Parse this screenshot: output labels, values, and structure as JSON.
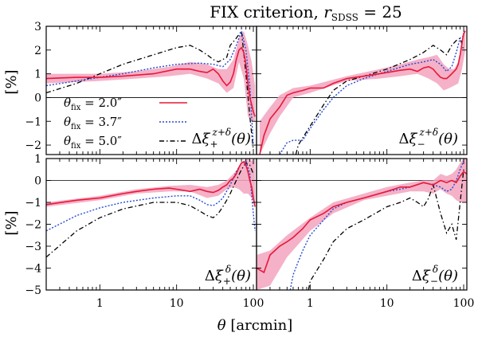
{
  "figure": {
    "title": "FIX criterion, r_SDSS = 25",
    "title_parts": {
      "main": "FIX criterion, ",
      "var": "r",
      "sub": "SDSS",
      "rest": " = 25"
    },
    "xlabel_parts": {
      "sym": "θ",
      "rest": " [arcmin]"
    },
    "ylabel": "[%]"
  },
  "chart_data": {
    "type": "line",
    "x_scale": "log",
    "x_ticks": [
      1,
      10,
      100
    ],
    "x_tick_labels": [
      "1",
      "10",
      "100"
    ],
    "legend": {
      "placement": "bottom-left of top-left panel",
      "entries": [
        {
          "label": "θ_fix = 2.0″",
          "sym": "θ",
          "sub": "fix",
          "rest": " = 2.0″",
          "color": "#e8173a",
          "style": "solid"
        },
        {
          "label": "θ_fix = 3.7″",
          "sym": "θ",
          "sub": "fix",
          "rest": " = 3.7″",
          "color": "#2449d8",
          "style": "dotted"
        },
        {
          "label": "θ_fix = 5.0″",
          "sym": "θ",
          "sub": "fix",
          "rest": " = 5.0″",
          "color": "#000000",
          "style": "dash-dot"
        }
      ]
    },
    "panels": [
      {
        "id": "top-left",
        "label": "Δξ+^(z+δ)(θ)",
        "label_parts": {
          "delta": "Δ",
          "xi": "ξ",
          "sub": "+",
          "sup": "z+δ",
          "arg": "(θ)"
        },
        "xlim": [
          0.2,
          110
        ],
        "ylim": [
          -2.4,
          3
        ],
        "y_ticks": [
          -2,
          -1,
          0,
          1,
          2,
          3
        ],
        "band": {
          "x": [
            0.2,
            1,
            3,
            8,
            15,
            25,
            35,
            45,
            55,
            65,
            75,
            85,
            95,
            105
          ],
          "lo": [
            0.6,
            0.7,
            0.8,
            0.9,
            1.0,
            0.8,
            0.6,
            0.2,
            0.4,
            1.5,
            0.8,
            -0.8,
            -1.0,
            -1.0
          ],
          "hi": [
            1.0,
            1.0,
            1.1,
            1.3,
            1.5,
            1.4,
            1.2,
            1.2,
            1.6,
            2.5,
            2.8,
            2.2,
            1.5,
            0.5
          ]
        },
        "series": [
          {
            "name": "θ_fix = 2.0″",
            "x": [
              0.2,
              0.5,
              1,
              2,
              5,
              10,
              15,
              20,
              25,
              30,
              35,
              40,
              45,
              50,
              55,
              60,
              65,
              70,
              75,
              80,
              85,
              90,
              95,
              100,
              105
            ],
            "y": [
              0.8,
              0.85,
              0.85,
              0.9,
              1.0,
              1.2,
              1.2,
              1.1,
              1.05,
              1.2,
              1.0,
              0.7,
              0.5,
              0.65,
              1.0,
              1.6,
              2.0,
              2.1,
              1.9,
              1.4,
              0.6,
              0.0,
              -0.3,
              -0.6,
              -0.8
            ]
          },
          {
            "name": "θ_fix = 3.7″",
            "x": [
              0.2,
              0.5,
              1,
              2,
              5,
              10,
              20,
              30,
              40,
              50,
              60,
              70,
              80,
              90,
              100
            ],
            "y": [
              0.5,
              0.7,
              0.85,
              1.0,
              1.25,
              1.4,
              1.45,
              1.4,
              1.3,
              1.6,
              2.2,
              2.8,
              2.0,
              0.5,
              -2.0
            ]
          },
          {
            "name": "θ_fix = 5.0″",
            "x": [
              0.2,
              0.5,
              1,
              2,
              5,
              10,
              15,
              20,
              25,
              30,
              35,
              40,
              45,
              50,
              60,
              70,
              80,
              90,
              100
            ],
            "y": [
              0.2,
              0.6,
              1.0,
              1.4,
              1.8,
              2.1,
              2.2,
              2.0,
              1.8,
              1.6,
              1.5,
              1.6,
              1.7,
              2.2,
              2.5,
              2.8,
              1.0,
              -0.8,
              -2.2
            ]
          }
        ]
      },
      {
        "id": "top-right",
        "label": "Δξ−^(z+δ)(θ)",
        "label_parts": {
          "delta": "Δ",
          "xi": "ξ",
          "sub": "−",
          "sup": "z+δ",
          "arg": "(θ)"
        },
        "xlim": [
          0.2,
          110
        ],
        "ylim": [
          -2.4,
          3
        ],
        "band": {
          "x": [
            0.22,
            0.3,
            0.4,
            0.6,
            1,
            3,
            8,
            15,
            25,
            35,
            45,
            55,
            65,
            75,
            85,
            95,
            105
          ],
          "lo": [
            -2.4,
            -1.5,
            -0.8,
            0.0,
            0.2,
            0.7,
            0.8,
            0.9,
            1.0,
            0.8,
            0.6,
            0.3,
            0.4,
            0.5,
            0.6,
            1.2,
            2.0
          ],
          "hi": [
            -1.0,
            -0.4,
            0.1,
            0.4,
            0.5,
            0.9,
            1.2,
            1.4,
            1.6,
            1.7,
            1.8,
            1.4,
            1.2,
            1.2,
            1.5,
            2.3,
            3.0
          ]
        },
        "series": [
          {
            "name": "θ_fix = 2.0″",
            "x": [
              0.22,
              0.25,
              0.3,
              0.4,
              0.5,
              0.6,
              0.8,
              1,
              1.5,
              2,
              3,
              5,
              8,
              10,
              15,
              20,
              25,
              30,
              35,
              40,
              45,
              50,
              55,
              60,
              65,
              70,
              75,
              80,
              85,
              90,
              95,
              100,
              105
            ],
            "y": [
              -2.4,
              -1.6,
              -0.9,
              -0.4,
              0.1,
              0.2,
              0.3,
              0.4,
              0.4,
              0.6,
              0.8,
              0.9,
              1.0,
              1.05,
              1.15,
              1.2,
              1.1,
              1.25,
              1.3,
              1.2,
              1.0,
              0.85,
              0.8,
              0.8,
              0.9,
              1.0,
              1.1,
              1.2,
              1.4,
              1.8,
              2.3,
              2.7,
              2.8
            ]
          },
          {
            "name": "θ_fix = 3.7″",
            "x": [
              0.4,
              0.5,
              0.6,
              0.8,
              1,
              1.5,
              2,
              3,
              5,
              10,
              20,
              30,
              40,
              50,
              60,
              70,
              80,
              90,
              100
            ],
            "y": [
              -2.4,
              -1.9,
              -1.8,
              -1.8,
              -1.3,
              -0.5,
              0.0,
              0.5,
              0.8,
              1.1,
              1.4,
              1.5,
              1.6,
              1.4,
              1.1,
              1.3,
              1.9,
              2.5,
              2.6
            ]
          },
          {
            "name": "θ_fix = 5.0″",
            "x": [
              0.65,
              0.7,
              0.8,
              1,
              1.5,
              2,
              3,
              5,
              10,
              20,
              30,
              40,
              50,
              60,
              70,
              80,
              90,
              100
            ],
            "y": [
              -2.4,
              -2.0,
              -1.7,
              -1.2,
              -0.3,
              0.3,
              0.7,
              0.9,
              1.2,
              1.6,
              1.9,
              2.2,
              2.0,
              1.8,
              2.2,
              2.4,
              2.5,
              2.0
            ]
          }
        ]
      },
      {
        "id": "bottom-left",
        "label": "Δξ+^δ(θ)",
        "label_parts": {
          "delta": "Δ",
          "xi": "ξ",
          "sub": "+",
          "sup": "δ",
          "arg": "(θ)"
        },
        "xlim": [
          0.2,
          110
        ],
        "ylim": [
          -5,
          1
        ],
        "y_ticks": [
          -5,
          -4,
          -3,
          -2,
          -1,
          0,
          1
        ],
        "band": {
          "x": [
            0.2,
            1,
            3,
            8,
            15,
            25,
            35,
            45,
            55,
            65,
            75,
            85,
            95,
            105
          ],
          "lo": [
            -1.2,
            -0.9,
            -0.6,
            -0.5,
            -0.5,
            -0.8,
            -0.7,
            -0.4,
            -0.3,
            -0.4,
            -0.6,
            -0.6,
            -0.8,
            -1.0
          ],
          "hi": [
            -1.0,
            -0.7,
            -0.4,
            -0.25,
            -0.2,
            -0.3,
            -0.2,
            0.0,
            0.3,
            0.6,
            0.9,
            1.0,
            0.9,
            1.0
          ]
        },
        "series": [
          {
            "name": "θ_fix = 2.0″",
            "x": [
              0.2,
              0.5,
              1,
              2,
              3,
              5,
              8,
              10,
              15,
              20,
              25,
              30,
              35,
              40,
              45,
              50,
              55,
              60,
              65,
              70,
              75,
              80,
              85,
              90,
              95,
              100,
              105
            ],
            "y": [
              -1.1,
              -0.9,
              -0.8,
              -0.6,
              -0.5,
              -0.4,
              -0.35,
              -0.4,
              -0.5,
              -0.4,
              -0.5,
              -0.55,
              -0.45,
              -0.3,
              -0.2,
              0.0,
              0.1,
              0.3,
              0.6,
              0.8,
              0.85,
              0.7,
              0.4,
              0.0,
              -0.3,
              -0.8,
              -1.2
            ]
          },
          {
            "name": "θ_fix = 3.7″",
            "x": [
              0.2,
              0.5,
              1,
              2,
              5,
              10,
              15,
              20,
              25,
              30,
              35,
              40,
              50,
              60,
              70,
              80,
              90,
              100,
              105
            ],
            "y": [
              -2.3,
              -1.6,
              -1.25,
              -1.0,
              -0.8,
              -0.7,
              -0.7,
              -0.9,
              -1.1,
              -1.15,
              -1.0,
              -0.8,
              -0.2,
              0.4,
              0.8,
              0.9,
              0.3,
              -1.5,
              -2.3
            ]
          },
          {
            "name": "θ_fix = 5.0″",
            "x": [
              0.2,
              0.5,
              1,
              2,
              5,
              10,
              15,
              20,
              25,
              30,
              35,
              40,
              45,
              50,
              60,
              70,
              80,
              90,
              100
            ],
            "y": [
              -3.5,
              -2.3,
              -1.7,
              -1.3,
              -1.0,
              -1.0,
              -1.15,
              -1.4,
              -1.6,
              -1.7,
              -1.5,
              -1.2,
              -0.9,
              -0.6,
              0.0,
              0.5,
              0.8,
              0.7,
              0.3
            ]
          }
        ]
      },
      {
        "id": "bottom-right",
        "label": "Δξ−^δ(θ)",
        "label_parts": {
          "delta": "Δ",
          "xi": "ξ",
          "sub": "−",
          "sup": "δ",
          "arg": "(θ)"
        },
        "xlim": [
          0.2,
          110
        ],
        "ylim": [
          -5,
          1
        ],
        "band": {
          "x": [
            0.2,
            0.3,
            0.5,
            1,
            2,
            5,
            10,
            20,
            30,
            40,
            50,
            60,
            70,
            80,
            90,
            100,
            110
          ],
          "lo": [
            -5,
            -4.8,
            -3.5,
            -2.3,
            -1.5,
            -0.9,
            -0.7,
            -0.5,
            -0.5,
            -0.6,
            -0.4,
            -0.6,
            -0.7,
            -0.9,
            -1.0,
            -1.0,
            -1.0
          ],
          "hi": [
            -3.4,
            -3.2,
            -2.5,
            -1.7,
            -1.0,
            -0.6,
            -0.3,
            -0.1,
            0.0,
            0.0,
            0.3,
            0.2,
            0.3,
            0.5,
            0.8,
            1.0,
            1.0
          ]
        },
        "series": [
          {
            "name": "θ_fix = 2.0″",
            "x": [
              0.2,
              0.25,
              0.3,
              0.4,
              0.5,
              0.6,
              0.8,
              1,
              1.5,
              2,
              3,
              5,
              10,
              15,
              20,
              30,
              40,
              50,
              60,
              70,
              80,
              90,
              100,
              110
            ],
            "y": [
              -4.0,
              -4.2,
              -3.4,
              -3.0,
              -2.8,
              -2.6,
              -2.2,
              -1.8,
              -1.5,
              -1.2,
              -1.0,
              -0.8,
              -0.5,
              -0.3,
              -0.3,
              -0.1,
              -0.2,
              0.0,
              -0.1,
              0.0,
              -0.1,
              0.2,
              0.4,
              0.3
            ]
          },
          {
            "name": "θ_fix = 3.7″",
            "x": [
              0.55,
              0.6,
              0.7,
              0.8,
              1,
              1.5,
              2,
              3,
              5,
              10,
              15,
              20,
              30,
              40,
              50,
              60,
              70,
              80,
              90,
              100
            ],
            "y": [
              -5.0,
              -4.3,
              -3.7,
              -3.2,
              -2.5,
              -1.8,
              -1.3,
              -1.0,
              -0.8,
              -0.5,
              -0.4,
              -0.3,
              -0.1,
              -0.2,
              -0.3,
              -0.5,
              -0.4,
              0.0,
              0.5,
              0.9
            ]
          },
          {
            "name": "θ_fix = 5.0″",
            "x": [
              0.95,
              1,
              1.5,
              2,
              3,
              5,
              10,
              15,
              20,
              25,
              30,
              35,
              40,
              50,
              60,
              70,
              80,
              90,
              100
            ],
            "y": [
              -5.0,
              -4.6,
              -3.6,
              -2.8,
              -2.2,
              -1.8,
              -1.2,
              -1.0,
              -0.8,
              -1.0,
              -1.2,
              -0.8,
              -0.2,
              -1.5,
              -2.4,
              -2.0,
              -2.7,
              -1.0,
              0.5
            ]
          }
        ]
      }
    ]
  }
}
